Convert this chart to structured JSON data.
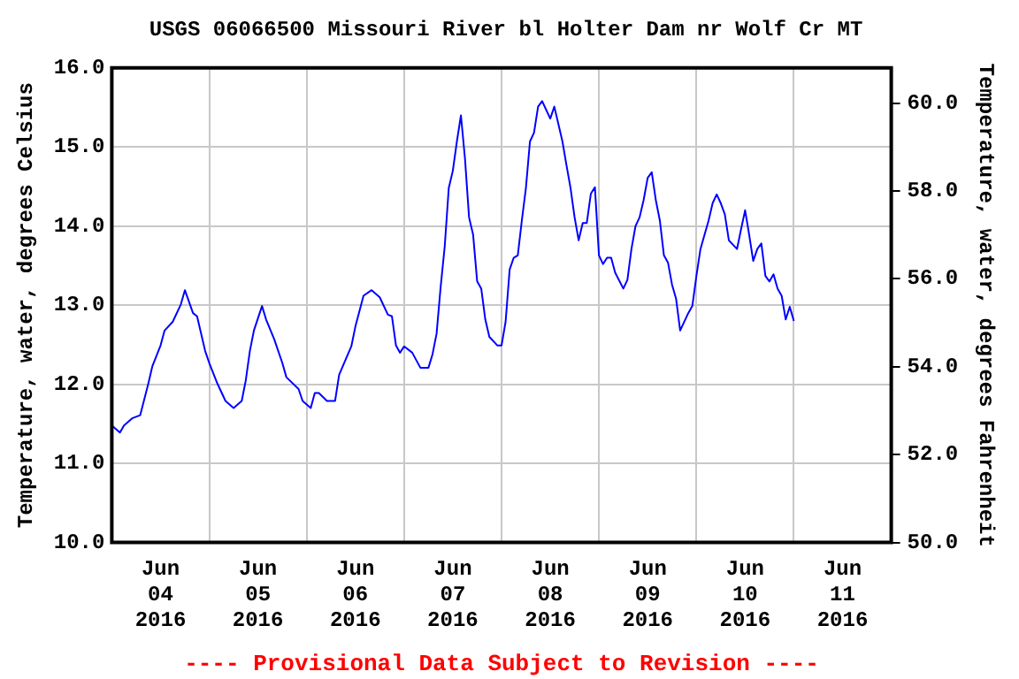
{
  "chart_data": {
    "type": "line",
    "title": "USGS 06066500 Missouri River bl Holter Dam nr Wolf Cr MT",
    "ylabel": "Temperature, water, degrees Celsius",
    "y2label": "Temperature, water, degrees Fahrenheit",
    "annotations": [
      "---- Provisional Data Subject to Revision ----"
    ],
    "x": [
      "2016-06-04T00:00",
      "2016-06-04T02:00",
      "2016-06-04T03:00",
      "2016-06-04T05:00",
      "2016-06-04T07:00",
      "2016-06-04T09:00",
      "2016-06-04T10:00",
      "2016-06-04T12:00",
      "2016-06-04T13:00",
      "2016-06-04T15:00",
      "2016-06-04T17:00",
      "2016-06-04T18:00",
      "2016-06-04T20:00",
      "2016-06-04T21:00",
      "2016-06-04T23:00",
      "2016-06-05T00:00",
      "2016-06-05T02:00",
      "2016-06-05T04:00",
      "2016-06-05T06:00",
      "2016-06-05T08:00",
      "2016-06-05T09:00",
      "2016-06-05T10:00",
      "2016-06-05T11:00",
      "2016-06-05T13:00",
      "2016-06-05T14:00",
      "2016-06-05T16:00",
      "2016-06-05T18:00",
      "2016-06-05T19:00",
      "2016-06-05T22:00",
      "2016-06-05T23:00",
      "2016-06-06T01:00",
      "2016-06-06T02:00",
      "2016-06-06T03:00",
      "2016-06-06T05:00",
      "2016-06-06T07:00",
      "2016-06-06T08:00",
      "2016-06-06T11:00",
      "2016-06-06T12:00",
      "2016-06-06T14:00",
      "2016-06-06T16:00",
      "2016-06-06T18:00",
      "2016-06-06T20:00",
      "2016-06-06T21:00",
      "2016-06-06T22:00",
      "2016-06-06T23:00",
      "2016-06-07T00:00",
      "2016-06-07T02:00",
      "2016-06-07T04:00",
      "2016-06-07T06:00",
      "2016-06-07T07:00",
      "2016-06-07T08:00",
      "2016-06-07T09:00",
      "2016-06-07T10:00",
      "2016-06-07T11:00",
      "2016-06-07T12:00",
      "2016-06-07T13:00",
      "2016-06-07T14:00",
      "2016-06-07T15:00",
      "2016-06-07T16:00",
      "2016-06-07T17:00",
      "2016-06-07T18:00",
      "2016-06-07T19:00",
      "2016-06-07T20:00",
      "2016-06-07T21:00",
      "2016-06-07T23:00",
      "2016-06-08T00:00",
      "2016-06-08T01:00",
      "2016-06-08T02:00",
      "2016-06-08T03:00",
      "2016-06-08T04:00",
      "2016-06-08T05:00",
      "2016-06-08T06:00",
      "2016-06-08T07:00",
      "2016-06-08T08:00",
      "2016-06-08T09:00",
      "2016-06-08T10:00",
      "2016-06-08T11:00",
      "2016-06-08T12:00",
      "2016-06-08T13:00",
      "2016-06-08T14:00",
      "2016-06-08T15:00",
      "2016-06-08T16:00",
      "2016-06-08T17:00",
      "2016-06-08T18:00",
      "2016-06-08T19:00",
      "2016-06-08T20:00",
      "2016-06-08T21:00",
      "2016-06-08T22:00",
      "2016-06-08T23:00",
      "2016-06-09T00:00",
      "2016-06-09T01:00",
      "2016-06-09T02:00",
      "2016-06-09T03:00",
      "2016-06-09T04:00",
      "2016-06-09T06:00",
      "2016-06-09T07:00",
      "2016-06-09T08:00",
      "2016-06-09T09:00",
      "2016-06-09T10:00",
      "2016-06-09T11:00",
      "2016-06-09T12:00",
      "2016-06-09T13:00",
      "2016-06-09T14:00",
      "2016-06-09T15:00",
      "2016-06-09T16:00",
      "2016-06-09T17:00",
      "2016-06-09T18:00",
      "2016-06-09T19:00",
      "2016-06-09T20:00",
      "2016-06-09T22:00",
      "2016-06-09T23:00",
      "2016-06-10T00:00",
      "2016-06-10T01:00",
      "2016-06-10T03:00",
      "2016-06-10T04:00",
      "2016-06-10T05:00",
      "2016-06-10T06:00",
      "2016-06-10T07:00",
      "2016-06-10T08:00",
      "2016-06-10T10:00",
      "2016-06-10T11:00",
      "2016-06-10T12:00",
      "2016-06-10T13:00",
      "2016-06-10T14:00",
      "2016-06-10T15:00",
      "2016-06-10T16:00",
      "2016-06-10T17:00",
      "2016-06-10T18:00",
      "2016-06-10T19:00",
      "2016-06-10T20:00",
      "2016-06-10T21:00",
      "2016-06-10T22:00",
      "2016-06-10T23:00",
      "2016-06-11T00:00"
    ],
    "series": [
      {
        "color": "#0000ff",
        "values": [
          11.48,
          11.39,
          11.48,
          11.57,
          11.61,
          12.01,
          12.23,
          12.49,
          12.68,
          12.79,
          13.01,
          13.19,
          12.9,
          12.86,
          12.42,
          12.27,
          12.01,
          11.79,
          11.7,
          11.79,
          12.05,
          12.42,
          12.68,
          12.99,
          12.82,
          12.57,
          12.27,
          12.09,
          11.94,
          11.79,
          11.7,
          11.89,
          11.89,
          11.79,
          11.79,
          12.12,
          12.48,
          12.73,
          13.12,
          13.19,
          13.1,
          12.88,
          12.86,
          12.49,
          12.4,
          12.48,
          12.4,
          12.21,
          12.21,
          12.38,
          12.64,
          13.23,
          13.74,
          14.48,
          14.7,
          15.07,
          15.4,
          14.85,
          14.11,
          13.89,
          13.3,
          13.21,
          12.82,
          12.6,
          12.49,
          12.49,
          12.79,
          13.45,
          13.6,
          13.63,
          14.07,
          14.48,
          15.07,
          15.18,
          15.51,
          15.58,
          15.47,
          15.36,
          15.51,
          15.29,
          15.07,
          14.77,
          14.48,
          14.11,
          13.82,
          14.04,
          14.04,
          14.41,
          14.49,
          13.63,
          13.52,
          13.6,
          13.6,
          13.41,
          13.21,
          13.32,
          13.71,
          14.0,
          14.11,
          14.33,
          14.61,
          14.68,
          14.33,
          14.07,
          13.63,
          13.54,
          13.26,
          13.08,
          12.68,
          12.9,
          12.99,
          13.37,
          13.71,
          14.07,
          14.29,
          14.4,
          14.29,
          14.15,
          13.82,
          13.71,
          13.96,
          14.2,
          13.89,
          13.56,
          13.71,
          13.78,
          13.37,
          13.3,
          13.39,
          13.21,
          13.12,
          12.82,
          12.98,
          12.8
        ]
      }
    ],
    "xlim": [
      "2016-06-04T00:00",
      "2016-06-12T00:00"
    ],
    "xticks": [
      {
        "value": "2016-06-04T00:00",
        "label": null
      },
      {
        "value": "2016-06-04T12:00",
        "label": "Jun\n04\n2016"
      },
      {
        "value": "2016-06-05T00:00",
        "label": null
      },
      {
        "value": "2016-06-05T12:00",
        "label": "Jun\n05\n2016"
      },
      {
        "value": "2016-06-06T00:00",
        "label": null
      },
      {
        "value": "2016-06-06T12:00",
        "label": "Jun\n06\n2016"
      },
      {
        "value": "2016-06-07T00:00",
        "label": null
      },
      {
        "value": "2016-06-07T12:00",
        "label": "Jun\n07\n2016"
      },
      {
        "value": "2016-06-08T00:00",
        "label": null
      },
      {
        "value": "2016-06-08T12:00",
        "label": "Jun\n08\n2016"
      },
      {
        "value": "2016-06-09T00:00",
        "label": null
      },
      {
        "value": "2016-06-09T12:00",
        "label": "Jun\n09\n2016"
      },
      {
        "value": "2016-06-10T00:00",
        "label": null
      },
      {
        "value": "2016-06-10T12:00",
        "label": "Jun\n10\n2016"
      },
      {
        "value": "2016-06-11T00:00",
        "label": null
      },
      {
        "value": "2016-06-11T12:00",
        "label": "Jun\n11\n2016"
      },
      {
        "value": "2016-06-12T00:00",
        "label": null
      }
    ],
    "ylim": [
      10,
      16
    ],
    "yticks": [
      {
        "value": 10,
        "label": "10.0"
      },
      {
        "value": 11,
        "label": "11.0"
      },
      {
        "value": 12,
        "label": "12.0"
      },
      {
        "value": 13,
        "label": "13.0"
      },
      {
        "value": 14,
        "label": "14.0"
      },
      {
        "value": 15,
        "label": "15.0"
      },
      {
        "value": 16,
        "label": "16.0"
      }
    ],
    "y2lim": [
      50,
      60.8
    ],
    "y2ticks": [
      {
        "value": 50,
        "label": "50.0"
      },
      {
        "value": 52,
        "label": "52.0"
      },
      {
        "value": 54,
        "label": "54.0"
      },
      {
        "value": 56,
        "label": "56.0"
      },
      {
        "value": 58,
        "label": "58.0"
      },
      {
        "value": 60,
        "label": "60.0"
      }
    ],
    "grid": true,
    "marker": "none",
    "line_style": "solid"
  }
}
